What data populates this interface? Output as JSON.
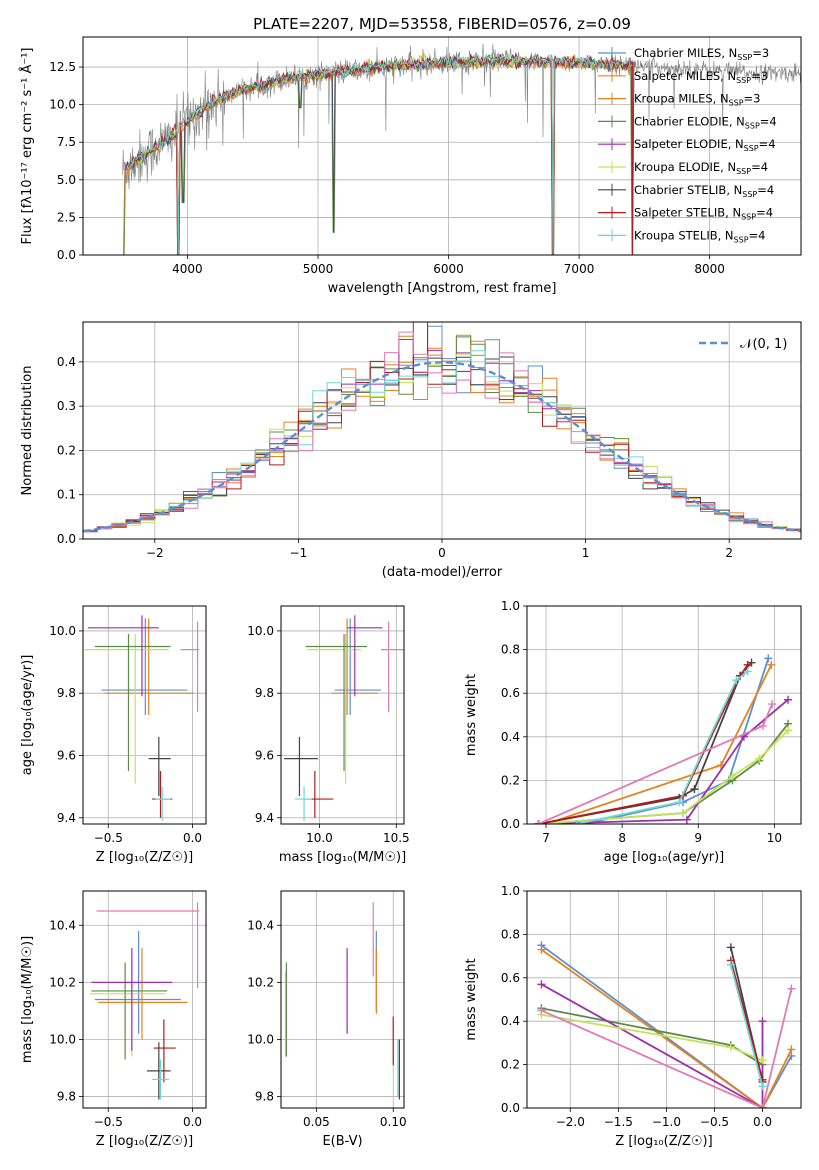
{
  "colors": {
    "gray": "#808080",
    "blue": "#5b8fd1",
    "orange": "#e6821e",
    "green": "#5f8a4a",
    "purple": "#9b2fae",
    "yellowgreen": "#c4e35a",
    "dark": "#444444",
    "red": "#b01c1c",
    "cyan": "#6fd6d6",
    "pink": "#e07bb8",
    "lightblue": "#9ec3e6"
  },
  "chart_data": [
    {
      "id": "spectrum",
      "type": "line",
      "title": "PLATE=2207, MJD=53558, FIBERID=0576, z=0.09",
      "xlabel": "wavelength [Angstrom, rest frame]",
      "ylabel": "Flux [fλ10⁻¹⁷ erg cm⁻² s⁻¹ Å⁻¹]",
      "xlim": [
        3200,
        8700
      ],
      "ylim": [
        0,
        14.5
      ],
      "xticks": [
        4000,
        5000,
        6000,
        7000,
        8000
      ],
      "yticks": [
        0.0,
        2.5,
        5.0,
        7.5,
        10.0,
        12.5
      ],
      "legend_position": "right",
      "legend": [
        {
          "main": "Chabrier MILES, N",
          "sub": "SSP",
          "tail": "=3",
          "color": "blue"
        },
        {
          "main": "Salpeter MILES, N",
          "sub": "SSP",
          "tail": "=3",
          "color": "orange"
        },
        {
          "main": "Kroupa MILES, N",
          "sub": "SSP",
          "tail": "=3",
          "color": "orange"
        },
        {
          "main": "Chabrier ELODIE, N",
          "sub": "SSP",
          "tail": "=4",
          "color": "green"
        },
        {
          "main": "Salpeter ELODIE, N",
          "sub": "SSP",
          "tail": "=4",
          "color": "purple"
        },
        {
          "main": "Kroupa ELODIE, N",
          "sub": "SSP",
          "tail": "=4",
          "color": "yellowgreen"
        },
        {
          "main": "Chabrier STELIB, N",
          "sub": "SSP",
          "tail": "=4",
          "color": "dark"
        },
        {
          "main": "Salpeter STELIB, N",
          "sub": "SSP",
          "tail": "=4",
          "color": "red"
        },
        {
          "main": "Kroupa STELIB, N",
          "sub": "SSP",
          "tail": "=4",
          "color": "cyan"
        }
      ],
      "continuum": {
        "x": [
          3500,
          3600,
          3700,
          3800,
          3900,
          4000,
          4100,
          4200,
          4400,
          4600,
          4800,
          5000,
          5200,
          5500,
          5800,
          6000,
          6300,
          6600,
          7000,
          7400,
          7800,
          8000,
          8200,
          8400,
          8700
        ],
        "y": [
          5.6,
          6.2,
          6.8,
          7.4,
          8.0,
          8.9,
          9.6,
          10.2,
          10.9,
          11.4,
          11.8,
          12.0,
          12.2,
          12.5,
          12.7,
          12.8,
          12.9,
          12.9,
          12.8,
          12.6,
          12.4,
          12.3,
          12.2,
          12.1,
          12.1
        ]
      },
      "dips": [
        {
          "x": 3930,
          "y": 0.0
        },
        {
          "x": 3968,
          "y": 3.5
        },
        {
          "x": 4102,
          "y": 9.2
        },
        {
          "x": 4861,
          "y": 9.8
        },
        {
          "x": 5120,
          "y": 1.5
        },
        {
          "x": 6800,
          "y": 0.0
        },
        {
          "x": 7410,
          "y": 0.0
        }
      ]
    },
    {
      "id": "residuals",
      "type": "histogram",
      "xlabel": "(data-model)/error",
      "ylabel": "Normed distribution",
      "xlim": [
        -2.5,
        2.5
      ],
      "ylim": [
        0,
        0.49
      ],
      "xticks": [
        -2,
        -1,
        0,
        1,
        2
      ],
      "yticks": [
        0.0,
        0.1,
        0.2,
        0.3,
        0.4
      ],
      "bin_width": 0.1,
      "legend_position": "top-right",
      "gaussian_label": "𝒩(0, 1)",
      "gaussian": {
        "mean": 0,
        "sigma": 1
      }
    },
    {
      "id": "age-vs-Z",
      "type": "errorbar",
      "xlabel": "Z [log₁₀(Z/Z☉)]",
      "ylabel": "age  [log₁₀(age/yr)]",
      "xlim": [
        -0.65,
        0.08
      ],
      "ylim": [
        9.38,
        10.08
      ],
      "xticks": [
        -0.5,
        0.0
      ],
      "yticks": [
        9.4,
        9.6,
        9.8,
        10.0
      ],
      "points": [
        {
          "x": -0.28,
          "y": 9.81,
          "xe": [
            0.26,
            0.25
          ],
          "ye": [
            0.08,
            0.23
          ],
          "color": "blue"
        },
        {
          "x": -0.26,
          "y": 9.8,
          "xe": [
            0.26,
            0.27
          ],
          "ye": [
            0.07,
            0.24
          ],
          "color": "orange"
        },
        {
          "x": -0.34,
          "y": 9.94,
          "xe": [
            0.3,
            0.2
          ],
          "ye": [
            0.43,
            0.05
          ],
          "color": "yellowgreen"
        },
        {
          "x": -0.38,
          "y": 9.95,
          "xe": [
            0.2,
            0.25
          ],
          "ye": [
            0.4,
            0.04
          ],
          "color": "green"
        },
        {
          "x": -0.3,
          "y": 10.01,
          "xe": [
            0.32,
            0.1
          ],
          "ye": [
            0.22,
            0.04
          ],
          "color": "purple"
        },
        {
          "x": 0.03,
          "y": 9.94,
          "xe": [
            0.1,
            0.01
          ],
          "ye": [
            0.2,
            0.09
          ],
          "color": "pink"
        },
        {
          "x": -0.2,
          "y": 9.59,
          "xe": [
            0.06,
            0.07
          ],
          "ye": [
            0.12,
            0.07
          ],
          "color": "dark"
        },
        {
          "x": -0.19,
          "y": 9.46,
          "xe": [
            0.05,
            0.07
          ],
          "ye": [
            0.06,
            0.09
          ],
          "color": "red"
        },
        {
          "x": -0.18,
          "y": 9.46,
          "xe": [
            0.04,
            0.05
          ],
          "ye": [
            0.07,
            0.04
          ],
          "color": "cyan"
        }
      ]
    },
    {
      "id": "age-vs-mass",
      "type": "errorbar",
      "xlabel": "mass [log₁₀(M/M☉)]",
      "ylabel": "",
      "xlim": [
        9.75,
        10.55
      ],
      "ylim": [
        9.38,
        10.08
      ],
      "xticks": [
        10.0,
        10.5
      ],
      "yticks": [
        9.4,
        9.6,
        9.8,
        10.0
      ],
      "points": [
        {
          "x": 10.2,
          "y": 9.81,
          "xe": [
            0.1,
            0.2
          ],
          "ye": [
            0.08,
            0.23
          ],
          "color": "blue"
        },
        {
          "x": 10.18,
          "y": 9.8,
          "xe": [
            0.1,
            0.2
          ],
          "ye": [
            0.07,
            0.24
          ],
          "color": "orange"
        },
        {
          "x": 10.17,
          "y": 9.94,
          "xe": [
            0.25,
            0.1
          ],
          "ye": [
            0.43,
            0.05
          ],
          "color": "yellowgreen"
        },
        {
          "x": 10.16,
          "y": 9.95,
          "xe": [
            0.25,
            0.15
          ],
          "ye": [
            0.4,
            0.04
          ],
          "color": "green"
        },
        {
          "x": 10.23,
          "y": 10.01,
          "xe": [
            0.05,
            0.18
          ],
          "ye": [
            0.22,
            0.04
          ],
          "color": "purple"
        },
        {
          "x": 10.45,
          "y": 9.94,
          "xe": [
            0.05,
            0.1
          ],
          "ye": [
            0.2,
            0.09
          ],
          "color": "pink"
        },
        {
          "x": 9.87,
          "y": 9.59,
          "xe": [
            0.1,
            0.12
          ],
          "ye": [
            0.12,
            0.07
          ],
          "color": "dark"
        },
        {
          "x": 9.97,
          "y": 9.46,
          "xe": [
            0.07,
            0.12
          ],
          "ye": [
            0.06,
            0.09
          ],
          "color": "red"
        },
        {
          "x": 9.9,
          "y": 9.46,
          "xe": [
            0.06,
            0.05
          ],
          "ye": [
            0.07,
            0.04
          ],
          "color": "cyan"
        }
      ]
    },
    {
      "id": "weight-vs-age",
      "type": "line",
      "xlabel": "age  [log₁₀(age/yr)]",
      "ylabel": "mass weight",
      "xlim": [
        6.75,
        10.35
      ],
      "ylim": [
        0,
        1.0
      ],
      "xticks": [
        7,
        8,
        9,
        10
      ],
      "yticks": [
        0.0,
        0.2,
        0.4,
        0.6,
        0.8,
        1.0
      ],
      "grid": true,
      "series": [
        {
          "color": "blue",
          "x": [
            7.5,
            8.8,
            9.4,
            9.92
          ],
          "y": [
            0.0,
            0.1,
            0.2,
            0.76
          ]
        },
        {
          "color": "orange",
          "x": [
            7.0,
            9.3,
            9.96
          ],
          "y": [
            0.0,
            0.27,
            0.73
          ]
        },
        {
          "color": "green",
          "x": [
            6.9,
            8.8,
            9.45,
            9.8,
            10.18
          ],
          "y": [
            0.0,
            0.05,
            0.2,
            0.29,
            0.46
          ]
        },
        {
          "color": "purple",
          "x": [
            6.9,
            8.85,
            9.6,
            10.18
          ],
          "y": [
            0.0,
            0.02,
            0.4,
            0.57
          ]
        },
        {
          "color": "yellowgreen",
          "x": [
            6.9,
            8.8,
            9.45,
            9.8,
            10.18
          ],
          "y": [
            0.0,
            0.05,
            0.22,
            0.3,
            0.43
          ]
        },
        {
          "color": "dark",
          "x": [
            6.9,
            8.75,
            8.95,
            9.55,
            9.7
          ],
          "y": [
            0.0,
            0.12,
            0.16,
            0.68,
            0.74
          ]
        },
        {
          "color": "red",
          "x": [
            6.9,
            8.8,
            9.55,
            9.65
          ],
          "y": [
            0.0,
            0.13,
            0.68,
            0.73
          ]
        },
        {
          "color": "cyan",
          "x": [
            7.4,
            8.75,
            9.5,
            9.65
          ],
          "y": [
            0.0,
            0.1,
            0.66,
            0.7
          ]
        },
        {
          "color": "pink",
          "x": [
            6.9,
            9.85,
            9.97
          ],
          "y": [
            0.0,
            0.45,
            0.55
          ]
        }
      ]
    },
    {
      "id": "mass-vs-Z",
      "type": "errorbar",
      "xlabel": "Z [log₁₀(Z/Z☉)]",
      "ylabel": "mass [log₁₀(M/M☉)]",
      "xlim": [
        -0.65,
        0.08
      ],
      "ylim": [
        9.76,
        10.52
      ],
      "xticks": [
        -0.5,
        0.0
      ],
      "yticks": [
        9.8,
        10.0,
        10.2,
        10.4
      ],
      "points": [
        {
          "x": -0.32,
          "y": 10.14,
          "xe": [
            0.26,
            0.25
          ],
          "ye": [
            0.12,
            0.24
          ],
          "color": "blue"
        },
        {
          "x": -0.3,
          "y": 10.13,
          "xe": [
            0.26,
            0.27
          ],
          "ye": [
            0.13,
            0.19
          ],
          "color": "orange"
        },
        {
          "x": -0.36,
          "y": 10.16,
          "xe": [
            0.25,
            0.2
          ],
          "ye": [
            0.22,
            0.12
          ],
          "color": "yellowgreen"
        },
        {
          "x": -0.4,
          "y": 10.17,
          "xe": [
            0.2,
            0.25
          ],
          "ye": [
            0.24,
            0.1
          ],
          "color": "green"
        },
        {
          "x": -0.36,
          "y": 10.2,
          "xe": [
            0.24,
            0.24
          ],
          "ye": [
            0.24,
            0.12
          ],
          "color": "purple"
        },
        {
          "x": 0.03,
          "y": 10.45,
          "xe": [
            0.6,
            0.01
          ],
          "ye": [
            0.27,
            0.03
          ],
          "color": "pink"
        },
        {
          "x": -0.2,
          "y": 9.89,
          "xe": [
            0.07,
            0.07
          ],
          "ye": [
            0.1,
            0.1
          ],
          "color": "dark"
        },
        {
          "x": -0.17,
          "y": 9.97,
          "xe": [
            0.06,
            0.07
          ],
          "ye": [
            0.12,
            0.1
          ],
          "color": "red"
        },
        {
          "x": -0.19,
          "y": 9.86,
          "xe": [
            0.05,
            0.05
          ],
          "ye": [
            0.07,
            0.07
          ],
          "color": "cyan"
        }
      ]
    },
    {
      "id": "mass-vs-EBV",
      "type": "errorbar",
      "xlabel": "E(B-V)",
      "ylabel": "",
      "xlim": [
        0.027,
        0.107
      ],
      "ylim": [
        9.76,
        10.52
      ],
      "xticks": [
        0.05,
        0.1
      ],
      "yticks": [
        9.8,
        10.0,
        10.2,
        10.4
      ],
      "points": [
        {
          "x": 0.089,
          "y": 10.26,
          "ye": [
            0.16,
            0.12
          ],
          "color": "blue"
        },
        {
          "x": 0.089,
          "y": 10.2,
          "ye": [
            0.11,
            0.12
          ],
          "color": "orange"
        },
        {
          "x": 0.03,
          "y": 10.1,
          "ye": [
            0.16,
            0.14
          ],
          "color": "yellowgreen"
        },
        {
          "x": 0.0305,
          "y": 10.12,
          "ye": [
            0.18,
            0.15
          ],
          "color": "green"
        },
        {
          "x": 0.07,
          "y": 10.17,
          "ye": [
            0.15,
            0.15
          ],
          "color": "purple"
        },
        {
          "x": 0.087,
          "y": 10.35,
          "ye": [
            0.13,
            0.13
          ],
          "color": "pink"
        },
        {
          "x": 0.104,
          "y": 9.9,
          "ye": [
            0.11,
            0.1
          ],
          "color": "dark"
        },
        {
          "x": 0.1,
          "y": 10.0,
          "ye": [
            0.09,
            0.08
          ],
          "color": "red"
        },
        {
          "x": 0.103,
          "y": 9.9,
          "ye": [
            0.1,
            0.1
          ],
          "color": "cyan"
        }
      ]
    },
    {
      "id": "weight-vs-Z",
      "type": "line",
      "xlabel": "Z [log₁₀(Z/Z☉)]",
      "ylabel": "mass weight",
      "xlim": [
        -2.45,
        0.4
      ],
      "ylim": [
        0,
        1.0
      ],
      "xticks": [
        -2.0,
        -1.5,
        -1.0,
        -0.5,
        0.0
      ],
      "yticks": [
        0.0,
        0.2,
        0.4,
        0.6,
        0.8,
        1.0
      ],
      "grid": true,
      "series": [
        {
          "color": "blue",
          "x": [
            -2.3,
            0.0,
            0.3
          ],
          "y": [
            0.75,
            0.0,
            0.24
          ]
        },
        {
          "color": "orange",
          "x": [
            -2.3,
            0.0,
            0.3
          ],
          "y": [
            0.73,
            0.0,
            0.27
          ]
        },
        {
          "color": "green",
          "x": [
            -2.3,
            -0.33,
            0.0
          ],
          "y": [
            0.46,
            0.29,
            0.2
          ]
        },
        {
          "color": "purple",
          "x": [
            -2.3,
            0.0,
            0.0
          ],
          "y": [
            0.57,
            0.0,
            0.4
          ]
        },
        {
          "color": "yellowgreen",
          "x": [
            -2.3,
            -0.33,
            0.0
          ],
          "y": [
            0.43,
            0.28,
            0.22
          ]
        },
        {
          "color": "dark",
          "x": [
            -0.33,
            0.0
          ],
          "y": [
            0.74,
            0.12
          ]
        },
        {
          "color": "red",
          "x": [
            -0.33,
            0.0
          ],
          "y": [
            0.68,
            0.13
          ]
        },
        {
          "color": "cyan",
          "x": [
            -0.33,
            0.0
          ],
          "y": [
            0.66,
            0.1
          ]
        },
        {
          "color": "pink",
          "x": [
            -2.3,
            0.0,
            0.3
          ],
          "y": [
            0.45,
            0.0,
            0.55
          ]
        }
      ]
    }
  ]
}
